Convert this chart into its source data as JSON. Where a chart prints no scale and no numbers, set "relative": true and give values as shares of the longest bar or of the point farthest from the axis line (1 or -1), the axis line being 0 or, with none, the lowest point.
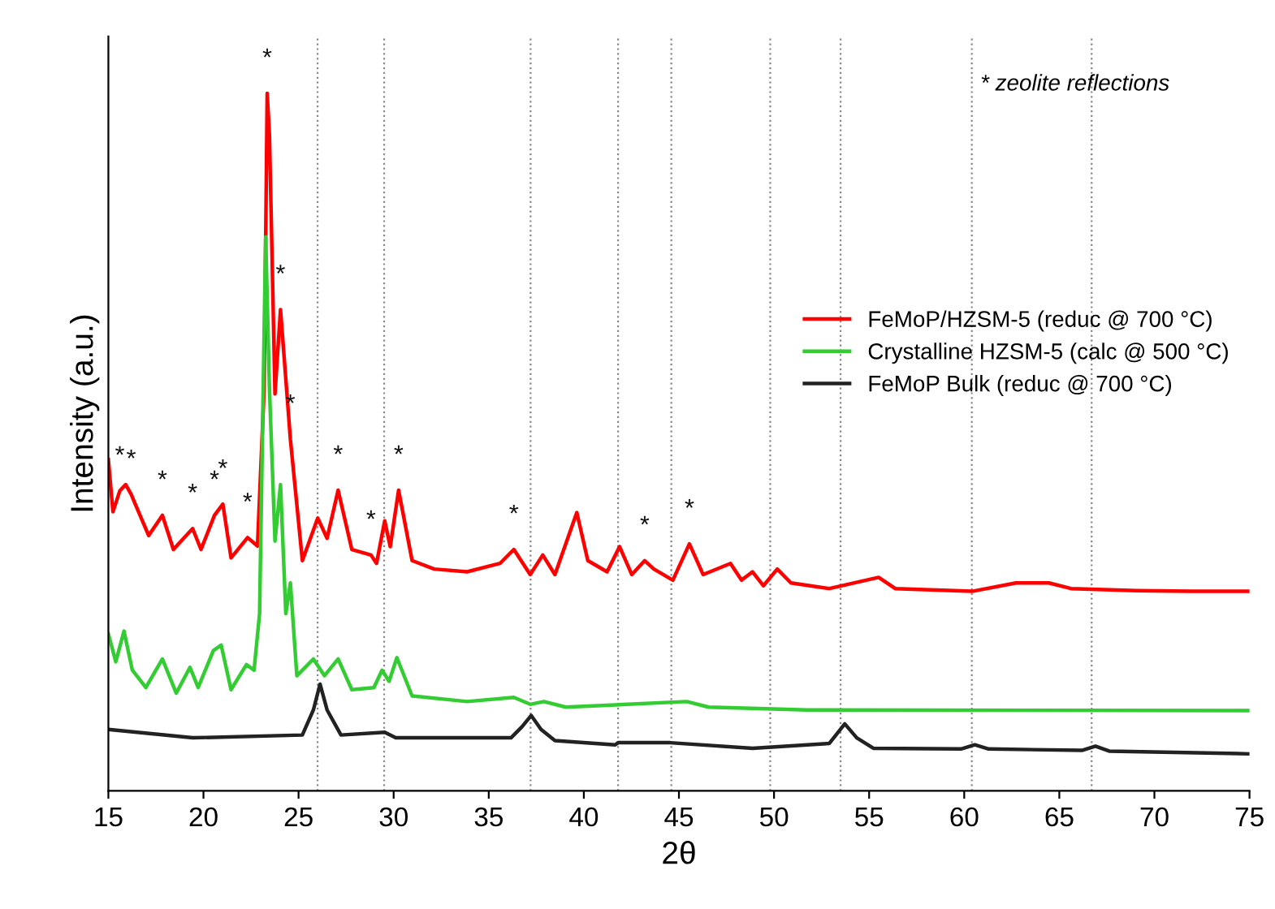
{
  "chart_data": {
    "type": "line",
    "relative": true,
    "xlabel": "2θ",
    "ylabel": "Intensity (a.u.)",
    "xlim": [
      15,
      75
    ],
    "xticks": [
      15,
      20,
      25,
      30,
      35,
      40,
      45,
      50,
      55,
      60,
      65,
      70,
      75
    ],
    "grid": false,
    "legend": "right",
    "marker": "none",
    "line_style": "solid",
    "series": [
      {
        "name": "FeMoP/HZSM-5 (reduc @ 700 °C)",
        "color": "#ff0000",
        "x": [
          15.0,
          15.24,
          15.6,
          15.91,
          16.2,
          16.4,
          17.12,
          17.84,
          18.42,
          19.43,
          19.87,
          20.58,
          21.02,
          21.45,
          22.32,
          22.84,
          23.19,
          23.35,
          23.47,
          23.76,
          24.05,
          24.28,
          24.57,
          25.2,
          26.01,
          26.5,
          27.08,
          27.8,
          28.81,
          29.1,
          29.53,
          29.82,
          30.26,
          30.97,
          32.13,
          33.86,
          35.59,
          36.32,
          37.18,
          37.84,
          38.48,
          39.63,
          40.21,
          41.22,
          41.88,
          42.52,
          43.2,
          43.68,
          44.68,
          45.55,
          46.27,
          47.71,
          48.29,
          48.87,
          49.44,
          50.17,
          50.89,
          52.91,
          55.5,
          56.37,
          60.41,
          62.72,
          64.45,
          65.61,
          69.07,
          71.95,
          75.0
        ],
        "values": [
          0.475,
          0.4,
          0.43,
          0.439,
          0.425,
          0.412,
          0.366,
          0.395,
          0.346,
          0.376,
          0.346,
          0.395,
          0.411,
          0.334,
          0.363,
          0.351,
          0.576,
          1.0,
          0.94,
          0.569,
          0.69,
          0.608,
          0.504,
          0.33,
          0.391,
          0.362,
          0.431,
          0.346,
          0.338,
          0.326,
          0.387,
          0.35,
          0.431,
          0.33,
          0.318,
          0.314,
          0.326,
          0.346,
          0.31,
          0.338,
          0.31,
          0.399,
          0.33,
          0.314,
          0.35,
          0.31,
          0.33,
          0.318,
          0.302,
          0.354,
          0.31,
          0.326,
          0.302,
          0.314,
          0.294,
          0.318,
          0.298,
          0.29,
          0.306,
          0.29,
          0.286,
          0.298,
          0.298,
          0.29,
          0.287,
          0.286,
          0.286
        ]
      },
      {
        "name": "Crystalline HZSM-5 (calc @ 500 °C)",
        "color": "#33cc33",
        "x": [
          15.0,
          15.39,
          15.82,
          16.26,
          16.97,
          17.84,
          18.57,
          19.29,
          19.72,
          20.52,
          20.93,
          21.45,
          22.26,
          22.66,
          22.95,
          23.27,
          23.47,
          23.76,
          24.05,
          24.33,
          24.57,
          24.91,
          25.78,
          26.36,
          27.08,
          27.8,
          28.96,
          29.39,
          29.76,
          30.17,
          30.97,
          33.86,
          36.32,
          37.18,
          37.9,
          39.05,
          45.41,
          46.56,
          51.75,
          75.0
        ],
        "values": [
          0.225,
          0.185,
          0.229,
          0.173,
          0.148,
          0.189,
          0.14,
          0.177,
          0.148,
          0.201,
          0.209,
          0.145,
          0.181,
          0.173,
          0.254,
          0.794,
          0.576,
          0.358,
          0.439,
          0.254,
          0.298,
          0.165,
          0.189,
          0.165,
          0.189,
          0.145,
          0.148,
          0.173,
          0.157,
          0.191,
          0.136,
          0.128,
          0.134,
          0.124,
          0.128,
          0.12,
          0.128,
          0.12,
          0.116,
          0.115
        ]
      },
      {
        "name": "FeMoP Bulk (reduc @ 700 °C)",
        "color": "#222222",
        "x": [
          15.0,
          19.43,
          25.2,
          25.78,
          26.13,
          26.5,
          27.23,
          29.53,
          30.11,
          36.17,
          36.75,
          37.23,
          37.75,
          38.48,
          41.65,
          41.8,
          44.54,
          48.87,
          52.91,
          53.72,
          54.35,
          55.22,
          59.83,
          60.56,
          61.28,
          66.19,
          66.9,
          67.62,
          75.0
        ],
        "values": [
          0.088,
          0.076,
          0.08,
          0.116,
          0.153,
          0.116,
          0.08,
          0.084,
          0.076,
          0.076,
          0.092,
          0.108,
          0.088,
          0.072,
          0.066,
          0.069,
          0.069,
          0.061,
          0.068,
          0.096,
          0.076,
          0.061,
          0.06,
          0.066,
          0.06,
          0.058,
          0.064,
          0.057,
          0.053
        ]
      }
    ],
    "ref_lines": [
      {
        "axis": "x",
        "value": 26.0,
        "color": "#888888",
        "line_style": "dotted"
      },
      {
        "axis": "x",
        "value": 29.5,
        "color": "#888888",
        "line_style": "dotted"
      },
      {
        "axis": "x",
        "value": 37.2,
        "color": "#888888",
        "line_style": "dotted"
      },
      {
        "axis": "x",
        "value": 41.8,
        "color": "#888888",
        "line_style": "dotted"
      },
      {
        "axis": "x",
        "value": 44.6,
        "color": "#888888",
        "line_style": "dotted"
      },
      {
        "axis": "x",
        "value": 49.8,
        "color": "#888888",
        "line_style": "dotted"
      },
      {
        "axis": "x",
        "value": 53.5,
        "color": "#888888",
        "line_style": "dotted"
      },
      {
        "axis": "x",
        "value": 60.4,
        "color": "#888888",
        "line_style": "dotted"
      },
      {
        "axis": "x",
        "value": 66.7,
        "color": "#888888",
        "line_style": "dotted"
      }
    ],
    "annotations": [
      "* zeolite reflections",
      {
        "text": "*",
        "x": 15.6,
        "y": 0.43
      },
      {
        "text": "*",
        "x": 16.2,
        "y": 0.425
      },
      {
        "text": "*",
        "x": 17.84,
        "y": 0.395
      },
      {
        "text": "*",
        "x": 19.43,
        "y": 0.376
      },
      {
        "text": "*",
        "x": 20.58,
        "y": 0.395
      },
      {
        "text": "*",
        "x": 21.02,
        "y": 0.411
      },
      {
        "text": "*",
        "x": 22.32,
        "y": 0.363
      },
      {
        "text": "*",
        "x": 23.35,
        "y": 1.0
      },
      {
        "text": "*",
        "x": 24.05,
        "y": 0.69
      },
      {
        "text": "*",
        "x": 24.57,
        "y": 0.504
      },
      {
        "text": "*",
        "x": 27.08,
        "y": 0.431
      },
      {
        "text": "*",
        "x": 28.81,
        "y": 0.338
      },
      {
        "text": "*",
        "x": 30.26,
        "y": 0.431
      },
      {
        "text": "*",
        "x": 36.32,
        "y": 0.346
      },
      {
        "text": "*",
        "x": 43.2,
        "y": 0.33
      },
      {
        "text": "*",
        "x": 45.55,
        "y": 0.354
      }
    ]
  }
}
